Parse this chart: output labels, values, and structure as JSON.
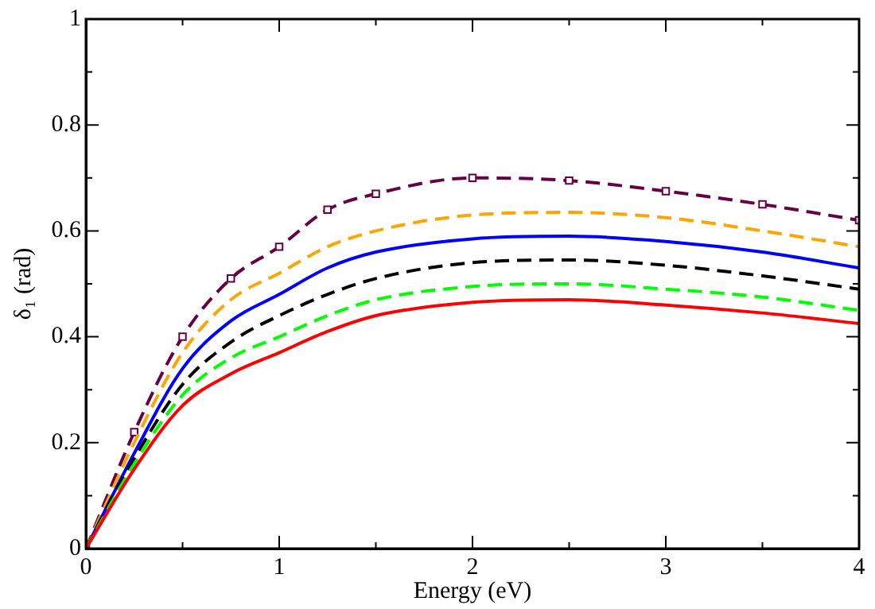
{
  "chart_data": {
    "type": "line",
    "xlabel": "Energy (eV)",
    "ylabel": "δ₁ (rad)",
    "x": [
      0,
      0.25,
      0.5,
      0.75,
      1,
      1.25,
      1.5,
      2,
      2.5,
      3,
      3.5,
      4
    ],
    "xlim": [
      0,
      4
    ],
    "xticks": [
      0,
      {
        "value": 0.5,
        "label": null
      },
      1,
      {
        "value": 1.5,
        "label": null
      },
      2,
      {
        "value": 2.5,
        "label": null
      },
      3,
      {
        "value": 3.5,
        "label": null
      },
      4
    ],
    "ylim": [
      0,
      1
    ],
    "yticks": [
      0,
      {
        "value": 0.1,
        "label": null
      },
      0.2,
      {
        "value": 0.3,
        "label": null
      },
      0.4,
      {
        "value": 0.5,
        "label": null
      },
      0.6,
      {
        "value": 0.7,
        "label": null
      },
      0.8,
      {
        "value": 0.9,
        "label": null
      },
      1
    ],
    "grid": false,
    "legend": false,
    "series": [
      {
        "color": "#ff0000",
        "line_style": "solid",
        "values": [
          0,
          0.15,
          0.27,
          0.33,
          0.37,
          0.41,
          0.44,
          0.465,
          0.47,
          0.46,
          0.445,
          0.425
        ]
      },
      {
        "color": "#00ff00",
        "line_style": "dashed",
        "values": [
          0,
          0.16,
          0.29,
          0.36,
          0.4,
          0.44,
          0.47,
          0.495,
          0.5,
          0.49,
          0.475,
          0.45
        ]
      },
      {
        "color": "#000000",
        "line_style": "dashed",
        "values": [
          0,
          0.17,
          0.31,
          0.39,
          0.44,
          0.48,
          0.51,
          0.54,
          0.545,
          0.535,
          0.515,
          0.49
        ]
      },
      {
        "color": "#0000ff",
        "line_style": "solid",
        "values": [
          0,
          0.18,
          0.34,
          0.43,
          0.48,
          0.53,
          0.56,
          0.585,
          0.59,
          0.58,
          0.56,
          0.53
        ]
      },
      {
        "color": "#ffa500",
        "line_style": "dashed",
        "values": [
          0,
          0.2,
          0.37,
          0.47,
          0.52,
          0.57,
          0.6,
          0.63,
          0.635,
          0.625,
          0.6,
          0.57
        ]
      },
      {
        "color": "#660044",
        "line_style": "dashed",
        "marker": "square",
        "values": [
          0,
          0.22,
          0.4,
          0.51,
          0.57,
          0.64,
          0.67,
          0.7,
          0.695,
          0.675,
          0.65,
          0.62
        ]
      }
    ]
  }
}
